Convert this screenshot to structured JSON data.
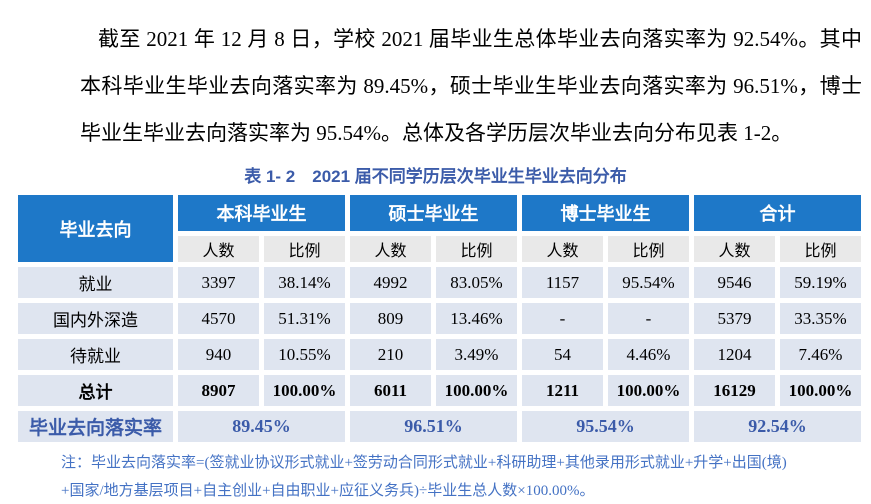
{
  "page": {
    "paragraph": "截至 2021 年 12 月 8 日，学校 2021 届毕业生总体毕业去向落实率为 92.54%。其中本科毕业生毕业去向落实率为 89.45%，硕士毕业生毕业去向落实率为 96.51%，博士毕业生毕业去向落实率为 95.54%。总体及各学历层次毕业去向分布见表 1-2。",
    "table_caption": "表 1- 2　2021 届不同学历层次毕业生毕业去向分布",
    "note_line1": "注：毕业去向落实率=(签就业协议形式就业+签劳动合同形式就业+科研助理+其他录用形式就业+升学+出国(境)",
    "note_line2": "+国家/地方基层项目+自主创业+自由职业+应征义务兵)÷毕业生总人数×100.00%。"
  },
  "colors": {
    "header_blue": "#1e78c8",
    "title_blue": "#3b5ba9",
    "footer_value_blue": "#3b5ba9",
    "note_blue": "#4472c4",
    "cell_background": "#dfe5f0",
    "subheader_background": "#e9e9e9",
    "gap_white": "#ffffff",
    "body_text": "#000000"
  },
  "table": {
    "corner": "毕业去向",
    "groups": [
      "本科毕业生",
      "硕士毕业生",
      "博士毕业生",
      "合计"
    ],
    "subheaders": [
      "人数",
      "比例"
    ],
    "rows": [
      {
        "label": "就业",
        "cells": [
          "3397",
          "38.14%",
          "4992",
          "83.05%",
          "1157",
          "95.54%",
          "9546",
          "59.19%"
        ]
      },
      {
        "label": "国内外深造",
        "cells": [
          "4570",
          "51.31%",
          "809",
          "13.46%",
          "-",
          "-",
          "5379",
          "33.35%"
        ]
      },
      {
        "label": "待就业",
        "cells": [
          "940",
          "10.55%",
          "210",
          "3.49%",
          "54",
          "4.46%",
          "1204",
          "7.46%"
        ]
      },
      {
        "label": "总计",
        "cells": [
          "8907",
          "100.00%",
          "6011",
          "100.00%",
          "1211",
          "100.00%",
          "16129",
          "100.00%"
        ]
      }
    ],
    "footer": {
      "label": "毕业去向落实率",
      "values": [
        "89.45%",
        "96.51%",
        "95.54%",
        "92.54%"
      ]
    }
  }
}
